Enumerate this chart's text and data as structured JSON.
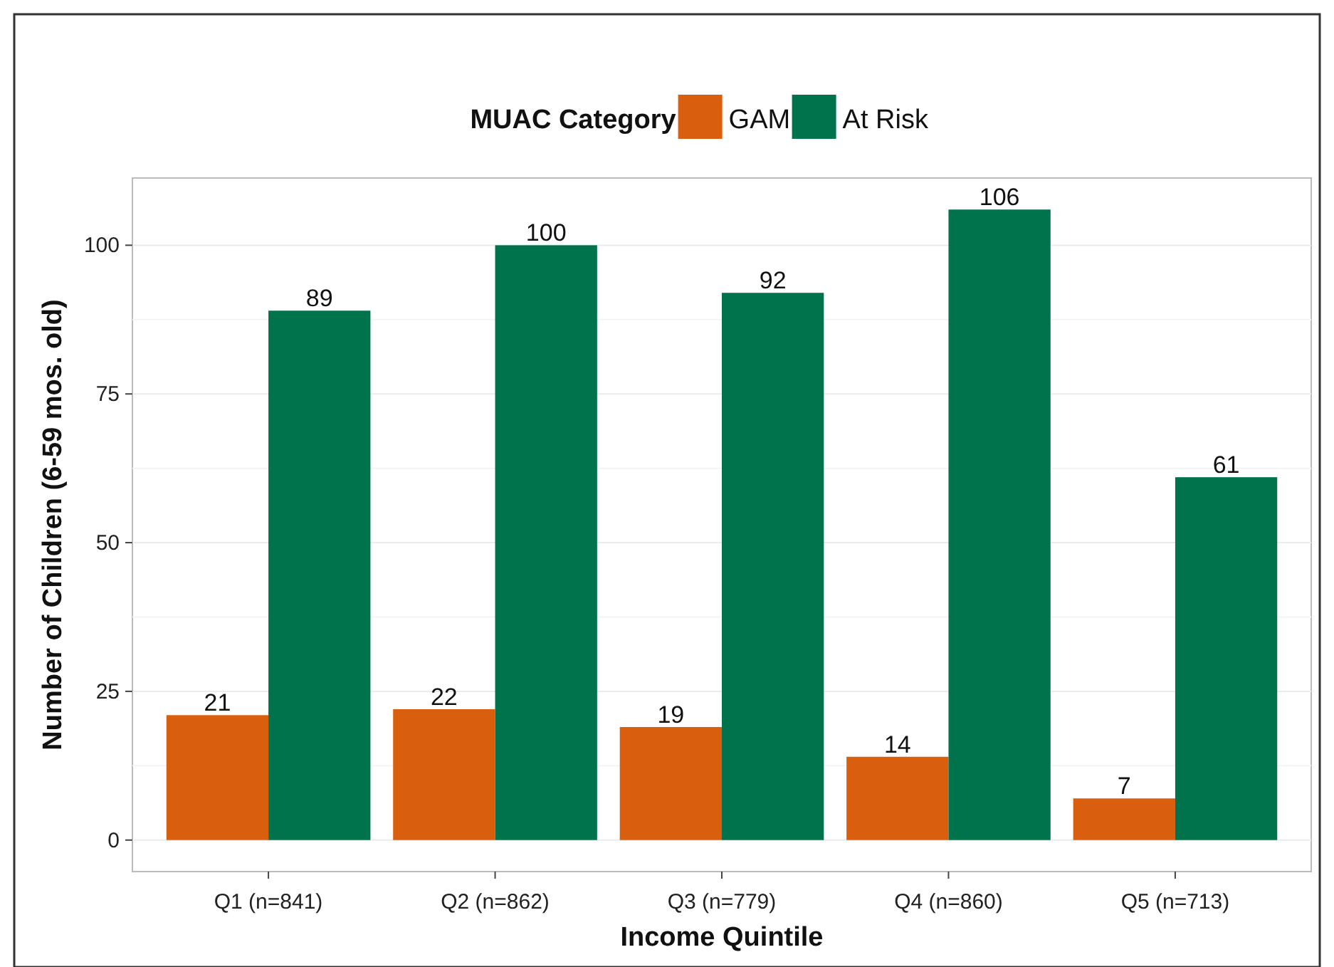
{
  "chart_data": {
    "type": "bar",
    "xlabel": "Income Quintile",
    "ylabel": "Number of Children (6-59 mos. old)",
    "legend_title": "MUAC Category",
    "categories": [
      "Q1 (n=841)",
      "Q2 (n=862)",
      "Q3 (n=779)",
      "Q4 (n=860)",
      "Q5 (n=713)"
    ],
    "series": [
      {
        "name": "GAM",
        "color": "#d95f0e",
        "values": [
          21,
          22,
          19,
          14,
          7
        ]
      },
      {
        "name": "At Risk",
        "color": "#00734d",
        "values": [
          89,
          100,
          92,
          106,
          61
        ]
      }
    ],
    "ylim": [
      -5.3,
      111.3
    ],
    "yticks": [
      0,
      25,
      50,
      75,
      100
    ],
    "grid": "y",
    "legend": "top",
    "data_labels": true
  }
}
